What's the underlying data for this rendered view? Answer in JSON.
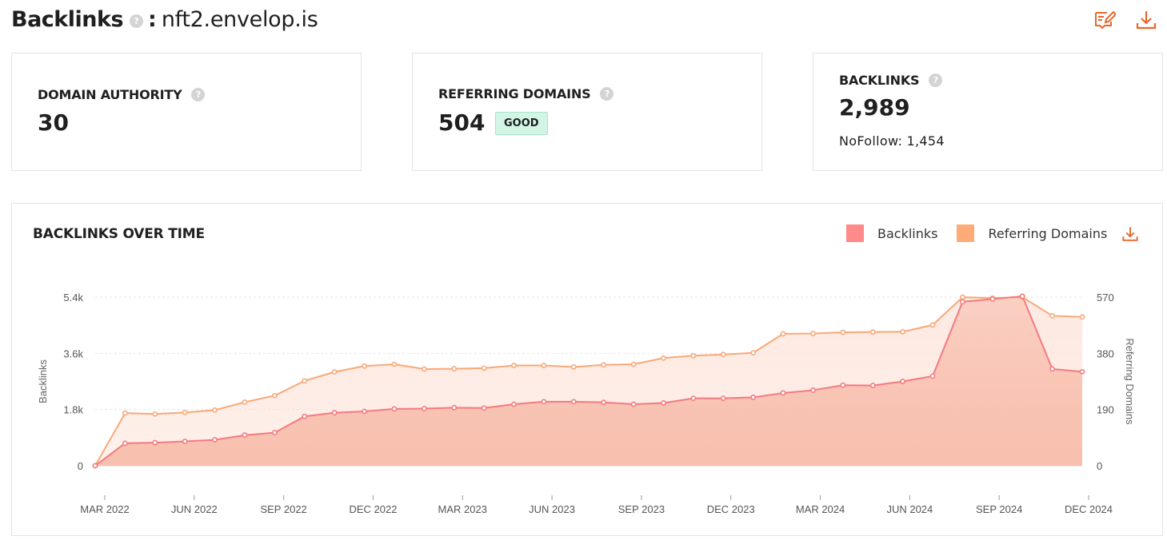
{
  "header": {
    "title": "Backlinks",
    "help": "?",
    "colon": ":",
    "domain": "nft2.envelop.is"
  },
  "icons": {
    "edit": "edit-report-icon",
    "download": "download-icon",
    "accent": "#e8672b"
  },
  "cards": {
    "domain_authority": {
      "label": "DOMAIN AUTHORITY",
      "value": "30"
    },
    "referring_domains": {
      "label": "REFERRING DOMAINS",
      "value": "504",
      "badge": "GOOD"
    },
    "backlinks": {
      "label": "BACKLINKS",
      "value": "2,989",
      "nofollow": "NoFollow: 1,454"
    }
  },
  "chart_section": {
    "title": "BACKLINKS OVER TIME",
    "legend": [
      {
        "name": "Backlinks",
        "color": "#ff8a8a"
      },
      {
        "name": "Referring Domains",
        "color": "#ffab78"
      }
    ]
  },
  "chart_data": {
    "type": "line",
    "x_ticks": [
      "MAR 2022",
      "JUN 2022",
      "SEP 2022",
      "DEC 2022",
      "MAR 2023",
      "JUN 2023",
      "SEP 2023",
      "DEC 2023",
      "MAR 2024",
      "JUN 2024",
      "SEP 2024",
      "DEC 2024"
    ],
    "ylabel": "Backlinks",
    "y2label": "Referring Domains",
    "y_ticks": [
      "0",
      "1.8k",
      "3.6k",
      "5.4k"
    ],
    "y2_ticks": [
      "0",
      "190",
      "380",
      "570"
    ],
    "ylim": [
      0,
      5400
    ],
    "y2lim": [
      0,
      570
    ],
    "grid": true,
    "series": [
      {
        "name": "Backlinks",
        "axis": "left",
        "color": "#f47a80",
        "values": [
          0,
          720,
          740,
          780,
          830,
          980,
          1060,
          1580,
          1700,
          1740,
          1820,
          1830,
          1860,
          1850,
          1970,
          2050,
          2050,
          2030,
          1970,
          2010,
          2160,
          2160,
          2190,
          2330,
          2420,
          2580,
          2570,
          2700,
          2870,
          5250,
          5340,
          5430,
          3100,
          3010
        ]
      },
      {
        "name": "Referring Domains",
        "axis": "right",
        "color": "#f8a878",
        "values": [
          0,
          178,
          175,
          180,
          188,
          215,
          237,
          287,
          317,
          337,
          343,
          327,
          328,
          330,
          339,
          339,
          334,
          341,
          343,
          364,
          372,
          376,
          382,
          446,
          447,
          451,
          452,
          453,
          476,
          570,
          567,
          570,
          507,
          503
        ]
      }
    ]
  }
}
